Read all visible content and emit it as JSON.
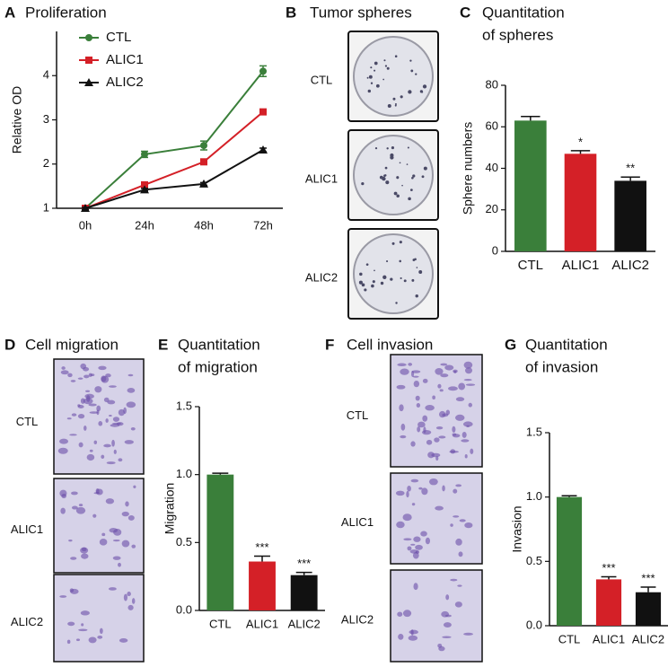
{
  "chart_data": [
    {
      "type": "line",
      "panel": "A",
      "title": [
        "Proliferation"
      ],
      "y_label": "Relative OD",
      "categories": [
        "0h",
        "24h",
        "48h",
        "72h"
      ],
      "series": [
        {
          "name": "CTL",
          "color": "#3a7f3a",
          "marker": "circle",
          "values": [
            1,
            2.22,
            2.42,
            4.1
          ],
          "errors": [
            0.02,
            0.07,
            0.1,
            0.12
          ]
        },
        {
          "name": "ALIC1",
          "color": "#d42027",
          "marker": "square",
          "values": [
            1,
            1.53,
            2.05,
            3.18
          ],
          "errors": [
            0.02,
            0.04,
            0.04,
            0.05
          ]
        },
        {
          "name": "ALIC2",
          "color": "#111111",
          "marker": "triangle",
          "values": [
            1,
            1.42,
            1.55,
            2.32
          ],
          "errors": [
            0.02,
            0.03,
            0.03,
            0.04
          ]
        }
      ],
      "ylim": [
        1,
        5
      ],
      "yticks": [
        1,
        2,
        3,
        4
      ]
    },
    {
      "type": "bar",
      "panel": "C",
      "title": [
        "Quantitation",
        "of spheres"
      ],
      "y_label": "Sphere numbers",
      "categories": [
        "CTL",
        "ALIC1",
        "ALIC2"
      ],
      "values": [
        63,
        47,
        34
      ],
      "errors": [
        2,
        1.5,
        1.8
      ],
      "colors": [
        "#3a7f3a",
        "#d42027",
        "#111111"
      ],
      "significance": [
        null,
        "*",
        "**"
      ],
      "ylim": [
        0,
        80
      ],
      "yticks": [
        0,
        20,
        40,
        60,
        80
      ]
    },
    {
      "type": "bar",
      "panel": "E",
      "title": [
        "Quantitation",
        "of migration"
      ],
      "y_label": "Migration",
      "categories": [
        "CTL",
        "ALIC1",
        "ALIC2"
      ],
      "values": [
        1.0,
        0.36,
        0.26
      ],
      "errors": [
        0.01,
        0.04,
        0.02
      ],
      "colors": [
        "#3a7f3a",
        "#d42027",
        "#111111"
      ],
      "significance": [
        null,
        "***",
        "***"
      ],
      "ylim": [
        0,
        1.5
      ],
      "yticks": [
        {
          "value": 0,
          "label": "0.0"
        },
        0.5,
        {
          "value": 1,
          "label": "1.0"
        },
        1.5
      ]
    },
    {
      "type": "bar",
      "panel": "G",
      "title": [
        "Quantitation",
        "of invasion"
      ],
      "y_label": "Invasion",
      "categories": [
        "CTL",
        "ALIC1",
        "ALIC2"
      ],
      "values": [
        1.0,
        0.36,
        0.26
      ],
      "errors": [
        0.01,
        0.02,
        0.04
      ],
      "colors": [
        "#3a7f3a",
        "#d42027",
        "#111111"
      ],
      "significance": [
        null,
        "***",
        "***"
      ],
      "ylim": [
        0,
        1.5
      ],
      "yticks": [
        {
          "value": 0,
          "label": "0.0"
        },
        0.5,
        {
          "value": 1,
          "label": "1.0"
        },
        1.5
      ]
    }
  ],
  "image_panels": [
    {
      "panel": "B",
      "title": "Tumor spheres",
      "rows": [
        "CTL",
        "ALIC1",
        "ALIC2"
      ]
    },
    {
      "panel": "D",
      "title": "Cell migration",
      "rows": [
        "CTL",
        "ALIC1",
        "ALIC2"
      ]
    },
    {
      "panel": "F",
      "title": "Cell invasion",
      "rows": [
        "CTL",
        "ALIC1",
        "ALIC2"
      ]
    }
  ]
}
